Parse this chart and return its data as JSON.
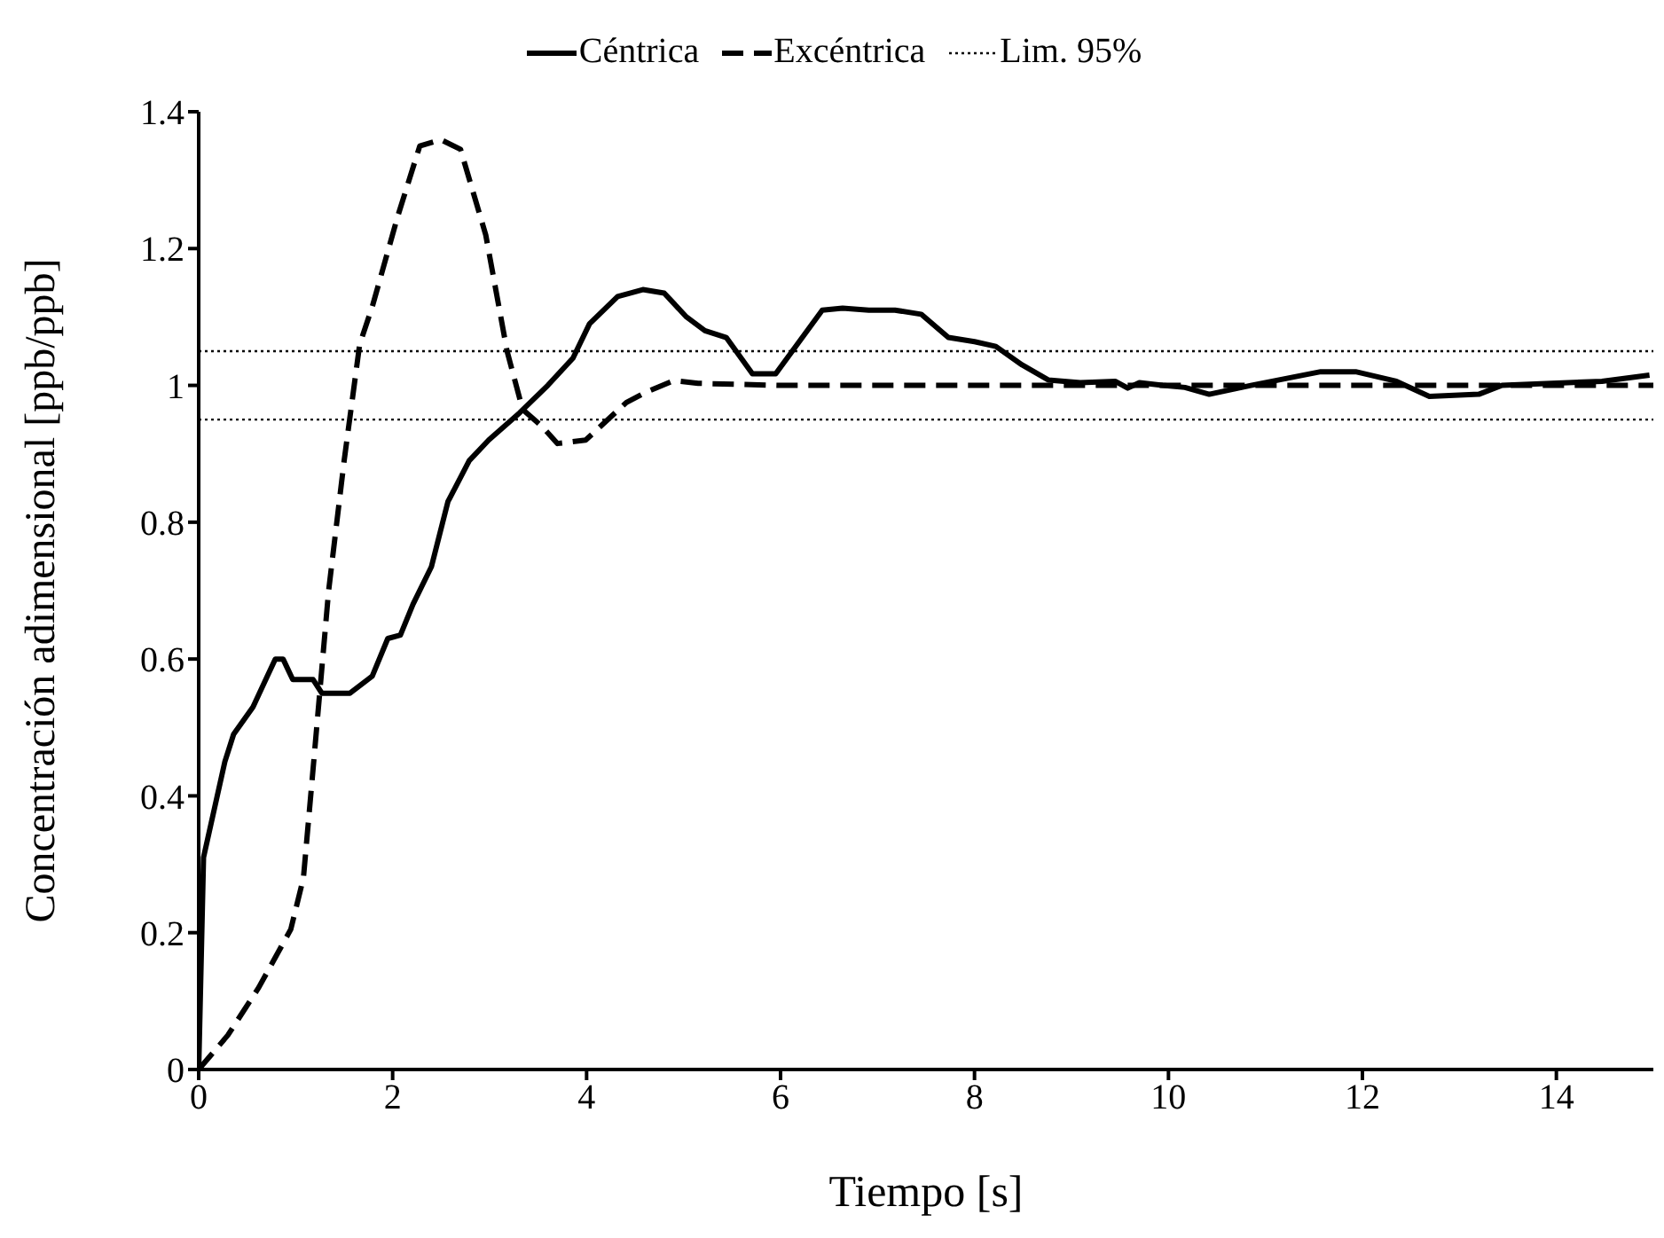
{
  "chart_data": {
    "type": "line",
    "xlabel": "Tiempo [s]",
    "ylabel": "Concentración adimensional [ppb/ppb]",
    "xlim": [
      0,
      15
    ],
    "xticks": [
      0,
      2,
      4,
      6,
      8,
      10,
      12,
      14
    ],
    "ylim": [
      0,
      1.4
    ],
    "yticks": [
      0,
      0.2,
      0.4,
      0.6,
      0.8,
      1,
      1.2,
      1.4
    ],
    "legend": "top",
    "marker": "none",
    "series": [
      {
        "name": "Céntrica",
        "color": "#000000",
        "line_style": "solid",
        "x": [
          0,
          0.05,
          0.27,
          0.36,
          0.56,
          0.79,
          0.87,
          0.97,
          1.18,
          1.27,
          1.56,
          1.79,
          1.95,
          2.08,
          2.21,
          2.4,
          2.57,
          2.79,
          2.99,
          3.31,
          3.6,
          3.86,
          4.03,
          4.32,
          4.58,
          4.8,
          5.03,
          5.22,
          5.44,
          5.71,
          5.95,
          6.43,
          6.64,
          6.91,
          7.18,
          7.45,
          7.73,
          8,
          8.22,
          8.49,
          8.76,
          9.09,
          9.45,
          9.58,
          9.7,
          9.94,
          10.17,
          10.42,
          10.85,
          11.57,
          11.93,
          12.35,
          12.69,
          13.2,
          13.44,
          14.47,
          14.96
        ],
        "values": [
          0,
          0.31,
          0.45,
          0.49,
          0.53,
          0.6,
          0.6,
          0.57,
          0.57,
          0.55,
          0.55,
          0.575,
          0.63,
          0.635,
          0.68,
          0.735,
          0.83,
          0.89,
          0.92,
          0.96,
          1,
          1.04,
          1.09,
          1.13,
          1.14,
          1.135,
          1.1,
          1.08,
          1.07,
          1.017,
          1.017,
          1.11,
          1.113,
          1.11,
          1.11,
          1.104,
          1.07,
          1.064,
          1.057,
          1.03,
          1.008,
          1.004,
          1.006,
          0.996,
          1.004,
          1,
          0.997,
          0.987,
          1,
          1.02,
          1.02,
          1.006,
          0.984,
          0.987,
          1,
          1.006,
          1.015
        ]
      },
      {
        "name": "Excéntrica",
        "color": "#000000",
        "line_style": "dashed",
        "x": [
          0,
          0.3,
          0.62,
          0.95,
          1.08,
          1.18,
          1.34,
          1.5,
          1.66,
          1.79,
          2.05,
          2.28,
          2.5,
          2.7,
          2.96,
          3.18,
          3.34,
          3.54,
          3.7,
          3.99,
          4.41,
          4.61,
          4.9,
          5.15,
          6,
          8,
          10,
          12,
          15
        ],
        "values": [
          0,
          0.05,
          0.12,
          0.205,
          0.28,
          0.44,
          0.7,
          0.89,
          1.06,
          1.115,
          1.246,
          1.35,
          1.359,
          1.345,
          1.22,
          1.05,
          0.965,
          0.94,
          0.915,
          0.92,
          0.975,
          0.99,
          1.007,
          1.003,
          1,
          1,
          1,
          1,
          1
        ]
      }
    ],
    "ref_lines": [
      {
        "axis": "y",
        "value": 1.05,
        "label": "Lim. 95%",
        "color": "#000000",
        "line_style": "dotted"
      },
      {
        "axis": "y",
        "value": 0.95,
        "color": "#000000",
        "line_style": "dotted"
      }
    ]
  }
}
